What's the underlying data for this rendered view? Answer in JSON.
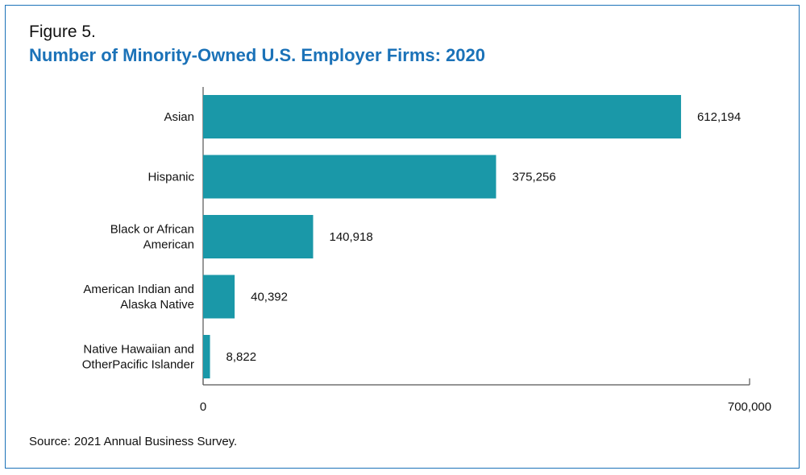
{
  "figure": {
    "label": "Figure 5.",
    "title": "Number of Minority-Owned U.S. Employer Firms: 2020",
    "source": "Source: 2021 Annual Business Survey."
  },
  "colors": {
    "bar": "#1a98a8",
    "title": "#1b72b8",
    "axis": "#555555",
    "text": "#111111",
    "border": "#1b72b8"
  },
  "chart_data": {
    "type": "bar",
    "orientation": "horizontal",
    "categories": [
      [
        "Asian"
      ],
      [
        "Hispanic"
      ],
      [
        "Black or African",
        "American"
      ],
      [
        "American Indian and",
        "Alaska Native"
      ],
      [
        "Native Hawaiian and",
        "OtherPacific Islander"
      ]
    ],
    "values": [
      612194,
      375256,
      140918,
      40392,
      8822
    ],
    "value_labels": [
      "612,194",
      "375,256",
      "140,918",
      "40,392",
      "8,822"
    ],
    "xlim": [
      0,
      700000
    ],
    "x_ticks": [
      {
        "value": 0,
        "label": "0"
      },
      {
        "value": 700000,
        "label": "700,000"
      }
    ],
    "grid": false,
    "legend": "none"
  }
}
